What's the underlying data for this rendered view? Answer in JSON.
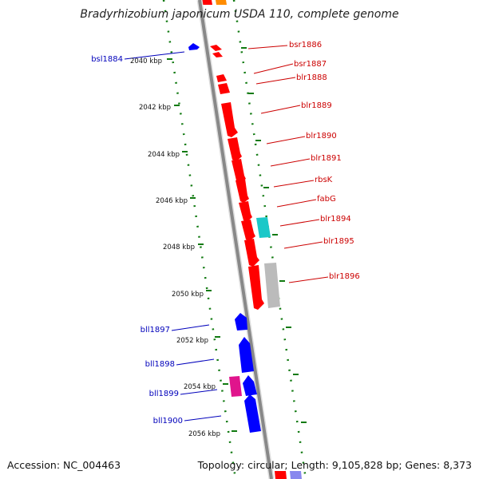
{
  "title": "Bradyrhizobium japonicum USDA 110, complete genome",
  "footer": {
    "accession": "Accession: NC_004463",
    "topology": "Topology: circular; Length: 9,105,828 bp; Genes: 8,373"
  },
  "ticks": [
    "2040 kbp",
    "2042 kbp",
    "2044 kbp",
    "2046 kbp",
    "2048 kbp",
    "2050 kbp",
    "2052 kbp",
    "2054 kbp",
    "2056 kbp"
  ],
  "genes_forward": [
    "bsr1886",
    "bsr1887",
    "blr1888",
    "blr1889",
    "blr1890",
    "blr1891",
    "rbsK",
    "fabG",
    "blr1894",
    "blr1895",
    "blr1896"
  ],
  "genes_reverse": [
    "bsl1884",
    "bll1897",
    "bll1898",
    "bll1899",
    "bll1900"
  ],
  "colors": {
    "forward_gene": "#ff0000",
    "reverse_gene": "#0000ff",
    "forward_label": "#cc0000",
    "reverse_label": "#0000bb",
    "rna_cyan": "#1ac8c8",
    "pseudo_gray": "#bbbbbb",
    "other_magenta": "#e0148c",
    "tick_green": "#117a11",
    "backbone": "#888888"
  }
}
